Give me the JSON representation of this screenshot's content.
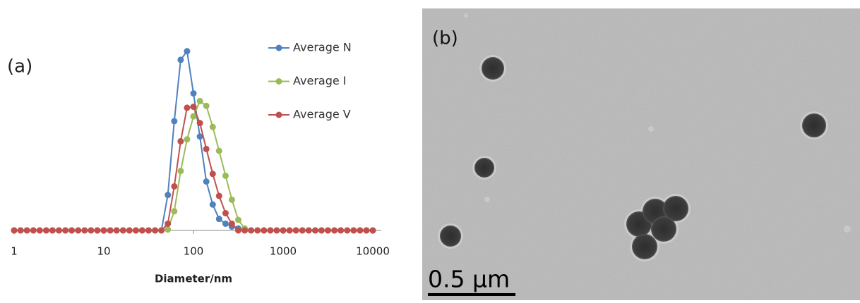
{
  "chart_data": {
    "type": "line",
    "panel_label": "(a)",
    "xlabel": "Diameter/nm",
    "log_x": true,
    "xlim": [
      1,
      10000
    ],
    "xticks": [
      1,
      10,
      100,
      1000,
      10000
    ],
    "ylim": [
      0,
      20
    ],
    "x": [
      1,
      1.18,
      1.39,
      1.64,
      1.93,
      2.28,
      2.68,
      3.16,
      3.73,
      4.39,
      5.18,
      6.11,
      7.2,
      8.48,
      10,
      11.8,
      13.9,
      16.4,
      19.3,
      22.8,
      26.8,
      31.6,
      37.3,
      43.9,
      51.8,
      61.1,
      72,
      84.8,
      100,
      118,
      139,
      164,
      193,
      228,
      268,
      316,
      373,
      439,
      518,
      611,
      720,
      848,
      1000,
      1180,
      1390,
      1640,
      1930,
      2280,
      2680,
      3160,
      3730,
      4390,
      5180,
      6110,
      7200,
      8480,
      10000
    ],
    "series": [
      {
        "name": "Average N",
        "color": "#4f81bd",
        "values": [
          0,
          0,
          0,
          0,
          0,
          0,
          0,
          0,
          0,
          0,
          0,
          0,
          0,
          0,
          0,
          0,
          0,
          0,
          0,
          0,
          0,
          0,
          0,
          0,
          3.7,
          11.4,
          17.8,
          18.7,
          14.3,
          9.8,
          5.1,
          2.7,
          1.2,
          0.7,
          0.4,
          0.2,
          0,
          0,
          0,
          0,
          0,
          0,
          0,
          0,
          0,
          0,
          0,
          0,
          0,
          0,
          0,
          0,
          0,
          0,
          0,
          0,
          0
        ]
      },
      {
        "name": "Average I",
        "color": "#9bbb59",
        "values": [
          0,
          0,
          0,
          0,
          0,
          0,
          0,
          0,
          0,
          0,
          0,
          0,
          0,
          0,
          0,
          0,
          0,
          0,
          0,
          0,
          0,
          0,
          0,
          0,
          0.1,
          2,
          6.2,
          9.5,
          11.9,
          13.5,
          13,
          10.8,
          8.3,
          5.7,
          3.2,
          1.1,
          0.2,
          0,
          0,
          0,
          0,
          0,
          0,
          0,
          0,
          0,
          0,
          0,
          0,
          0,
          0,
          0,
          0,
          0,
          0,
          0,
          0
        ]
      },
      {
        "name": "Average V",
        "color": "#c0504d",
        "values": [
          0,
          0,
          0,
          0,
          0,
          0,
          0,
          0,
          0,
          0,
          0,
          0,
          0,
          0,
          0,
          0,
          0,
          0,
          0,
          0,
          0,
          0,
          0,
          0,
          0.7,
          4.6,
          9.3,
          12.8,
          12.9,
          11.2,
          8.5,
          5.9,
          3.6,
          1.8,
          0.7,
          0,
          0,
          0,
          0,
          0,
          0,
          0,
          0,
          0,
          0,
          0,
          0,
          0,
          0,
          0,
          0,
          0,
          0,
          0,
          0,
          0,
          0
        ]
      }
    ]
  },
  "image": {
    "panel_label": "(b)",
    "scale_bar": "0.5 μm"
  }
}
